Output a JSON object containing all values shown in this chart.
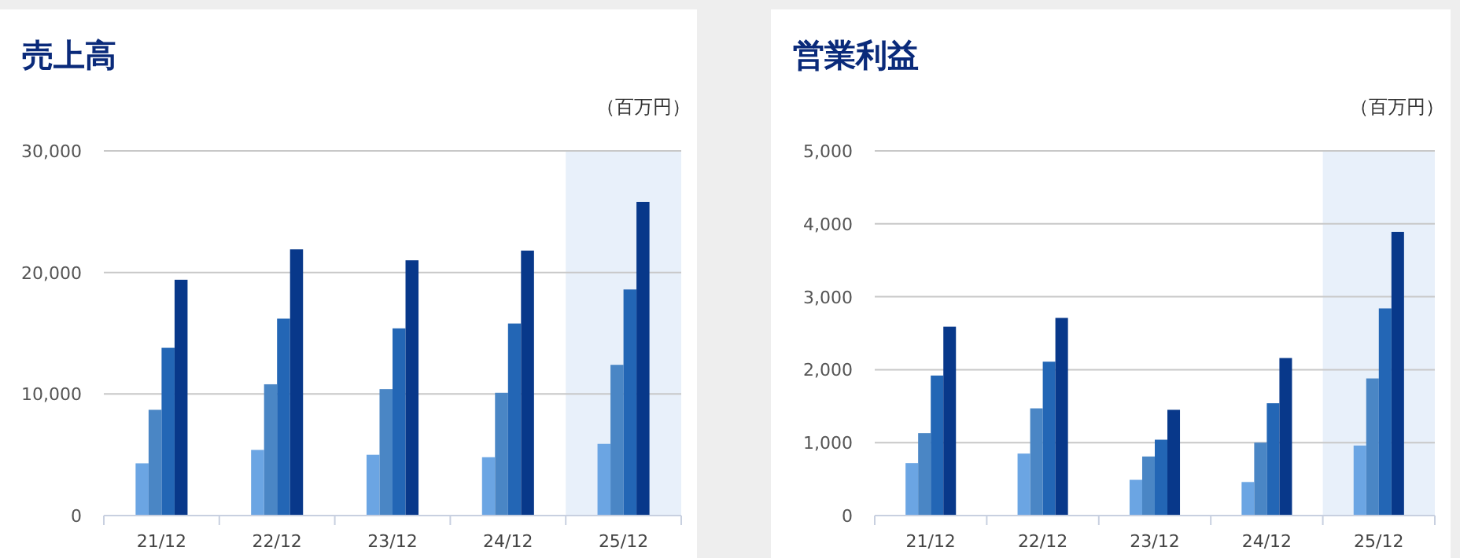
{
  "chart_data": [
    {
      "type": "bar",
      "title": "売上高",
      "annotations": [
        "（百万円）"
      ],
      "categories": [
        "21/12",
        "22/12",
        "23/12",
        "24/12",
        "25/12"
      ],
      "series": [
        {
          "color": "#6ba5e3",
          "values": [
            4300,
            5400,
            5000,
            4800,
            5900
          ]
        },
        {
          "color": "#4a86c5",
          "values": [
            8700,
            10800,
            10400,
            10100,
            12400
          ]
        },
        {
          "color": "#2366b5",
          "values": [
            13800,
            16200,
            15400,
            15800,
            18600
          ]
        },
        {
          "color": "#08388a",
          "values": [
            19400,
            21900,
            21000,
            21800,
            25800
          ]
        }
      ],
      "ylim": [
        0,
        30000
      ],
      "yticks": [
        0,
        {
          "value": 10000,
          "label": "10,000"
        },
        {
          "value": 20000,
          "label": "20,000"
        },
        {
          "value": 30000,
          "label": "30,000"
        }
      ],
      "grid": "y",
      "bands": [
        {
          "axis": "x",
          "from": "25/12",
          "to": "25/12",
          "color": "#e8f0fa"
        }
      ]
    },
    {
      "type": "bar",
      "title": "営業利益",
      "annotations": [
        "（百万円）"
      ],
      "categories": [
        "21/12",
        "22/12",
        "23/12",
        "24/12",
        "25/12"
      ],
      "series": [
        {
          "color": "#6ba5e3",
          "values": [
            720,
            850,
            490,
            460,
            960
          ]
        },
        {
          "color": "#4a86c5",
          "values": [
            1130,
            1470,
            810,
            1000,
            1880
          ]
        },
        {
          "color": "#2366b5",
          "values": [
            1920,
            2110,
            1040,
            1540,
            2840
          ]
        },
        {
          "color": "#08388a",
          "values": [
            2590,
            2710,
            1450,
            2160,
            3890
          ]
        }
      ],
      "ylim": [
        0,
        5000
      ],
      "yticks": [
        0,
        {
          "value": 1000,
          "label": "1,000"
        },
        {
          "value": 2000,
          "label": "2,000"
        },
        {
          "value": 3000,
          "label": "3,000"
        },
        {
          "value": 4000,
          "label": "4,000"
        },
        {
          "value": 5000,
          "label": "5,000"
        }
      ],
      "grid": "y",
      "bands": [
        {
          "axis": "x",
          "from": "25/12",
          "to": "25/12",
          "color": "#e8f0fa"
        }
      ]
    }
  ]
}
